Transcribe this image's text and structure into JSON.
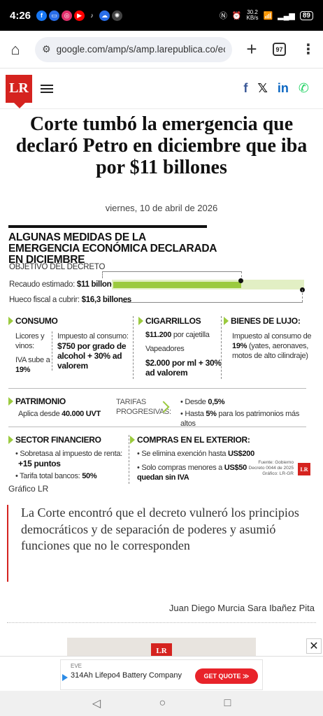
{
  "status": {
    "time": "4:26",
    "net_speed": "30.2",
    "net_unit": "KB/s",
    "battery": "89",
    "apps": [
      {
        "name": "facebook-icon",
        "glyph": "f",
        "color": "#1877f2"
      },
      {
        "name": "messages-icon",
        "glyph": "▭",
        "color": "#2a6ee8"
      },
      {
        "name": "instagram-icon",
        "glyph": "◎",
        "color": "#e1306c"
      },
      {
        "name": "youtube-icon",
        "glyph": "▶",
        "color": "#ff0000"
      },
      {
        "name": "tiktok-icon",
        "glyph": "♪",
        "color": "#000000"
      },
      {
        "name": "cloud-icon",
        "glyph": "☁",
        "color": "#2a6ee8"
      },
      {
        "name": "chatgpt-icon",
        "glyph": "✺",
        "color": "#444444"
      }
    ]
  },
  "browser": {
    "url": "google.com/amp/s/amp.larepublica.co/econ",
    "tab_count": "97"
  },
  "site": {
    "logo": "LR",
    "social": [
      {
        "name": "facebook-share-icon",
        "glyph": "f",
        "color": "#3b5998"
      },
      {
        "name": "x-share-icon",
        "glyph": "𝕏",
        "color": "#111111"
      },
      {
        "name": "linkedin-share-icon",
        "glyph": "in",
        "color": "#0a66c2"
      },
      {
        "name": "whatsapp-share-icon",
        "glyph": "✆",
        "color": "#25d366"
      }
    ]
  },
  "article": {
    "headline": "Corte tumbó la emergencia que declaró Petro en diciembre que iba por $11 billones",
    "date": "viernes, 10 de abril de 2026",
    "quote": "La Corte encontró que el decreto vulneró los principios democráticos y de separación de poderes y asumió funciones que no le corresponden",
    "authors": "Juan Diego Murcia Sara Ibañez Pita",
    "graphic_credit": "Gráfico LR"
  },
  "info": {
    "title": "ALGUNAS MEDIDAS DE LA EMERGENCIA ECONÓMICA DECLARADA EN DICIEMBRE",
    "objective": "OBJETIVO DEL DECRETO",
    "bars": [
      {
        "label": "Recaudo estimado: ",
        "value_label": "$11 billones",
        "value": 11
      },
      {
        "label": "Hueco fiscal a cubrir: ",
        "value_label": "$16,3 billones",
        "value": 16.3
      }
    ],
    "consumo": {
      "title": "CONSUMO",
      "left": "Licores y vinos:",
      "iva_label": "IVA sube a ",
      "iva_value": "19%",
      "right_label": "Impuesto al consumo:",
      "right_value": "$750 por grado de alcohol + 30% ad valorem"
    },
    "cigarrillos": {
      "title": "CIGARRILLOS",
      "price": "$11.200",
      "price_suffix": " por cajetilla",
      "vape_label": "Vapeadores",
      "vape_value": "$2.000 por ml + 30% ad valorem"
    },
    "lujo": {
      "title": "BIENES DE LUJO:",
      "text_a": "Impuesto al consumo de ",
      "text_b": "19%",
      "text_c": " (yates, aeronaves, motos de alto cilindraje)"
    },
    "patrimonio": {
      "title": "PATRIMONIO",
      "sub_label": "Aplica desde ",
      "sub_value": "40.000 UVT",
      "tarifas": "TARIFAS PROGRESIVAS:",
      "desde_label": "Desde ",
      "desde_value": "0,5%",
      "hasta_label": "Hasta ",
      "hasta_value": "5%",
      "hasta_suffix": " para los patrimonios más altos"
    },
    "financiero": {
      "title": "SECTOR FINANCIERO",
      "line1": "Sobretasa al impuesto de renta:",
      "line1_value": "+15 puntos",
      "line2_label": "Tarifa total bancos: ",
      "line2_value": "50%"
    },
    "exterior": {
      "title": "COMPRAS EN EL EXTERIOR:",
      "line1_label": "Se elimina exención hasta ",
      "line1_value": "US$200",
      "line2_label": "Solo compras menores a ",
      "line2_value": "US$50 quedan sin IVA"
    },
    "source": "Fuente: Gobierno Decreto 0044 de 2025 Gráfico: LR-GR"
  },
  "ad": {
    "brand": "EVE",
    "text": "314Ah Lifepo4 Battery Company",
    "cta": "GET QUOTE ≫"
  }
}
